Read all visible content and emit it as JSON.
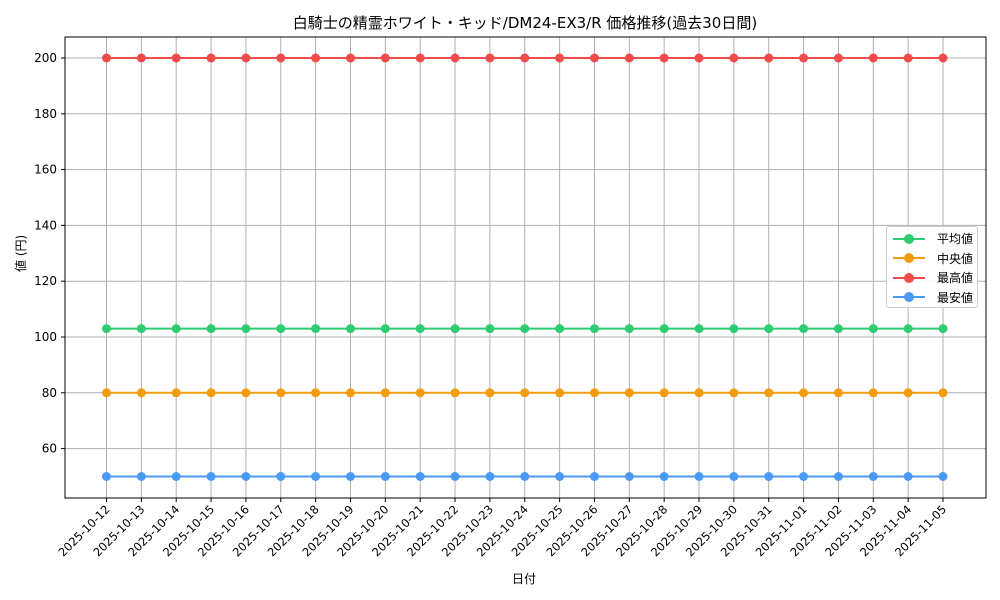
{
  "chart_data": {
    "type": "line",
    "title": "白騎士の精霊ホワイト・キッド/DM24-EX3/R 価格推移(過去30日間)",
    "xlabel": "日付",
    "ylabel": "値 (円)",
    "x": [
      "2025-10-12",
      "2025-10-13",
      "2025-10-14",
      "2025-10-15",
      "2025-10-16",
      "2025-10-17",
      "2025-10-18",
      "2025-10-19",
      "2025-10-20",
      "2025-10-21",
      "2025-10-22",
      "2025-10-23",
      "2025-10-24",
      "2025-10-25",
      "2025-10-26",
      "2025-10-27",
      "2025-10-28",
      "2025-10-29",
      "2025-10-30",
      "2025-10-31",
      "2025-11-01",
      "2025-11-02",
      "2025-11-03",
      "2025-11-04",
      "2025-11-05"
    ],
    "series": [
      {
        "name": "平均値",
        "color": "#2ecc71",
        "values": [
          103,
          103,
          103,
          103,
          103,
          103,
          103,
          103,
          103,
          103,
          103,
          103,
          103,
          103,
          103,
          103,
          103,
          103,
          103,
          103,
          103,
          103,
          103,
          103,
          103
        ]
      },
      {
        "name": "中央値",
        "color": "#f39c12",
        "values": [
          80,
          80,
          80,
          80,
          80,
          80,
          80,
          80,
          80,
          80,
          80,
          80,
          80,
          80,
          80,
          80,
          80,
          80,
          80,
          80,
          80,
          80,
          80,
          80,
          80
        ]
      },
      {
        "name": "最高値",
        "color": "#f04b4b",
        "values": [
          200,
          200,
          200,
          200,
          200,
          200,
          200,
          200,
          200,
          200,
          200,
          200,
          200,
          200,
          200,
          200,
          200,
          200,
          200,
          200,
          200,
          200,
          200,
          200,
          200
        ]
      },
      {
        "name": "最安値",
        "color": "#4a9af5",
        "values": [
          50,
          50,
          50,
          50,
          50,
          50,
          50,
          50,
          50,
          50,
          50,
          50,
          50,
          50,
          50,
          50,
          50,
          50,
          50,
          50,
          50,
          50,
          50,
          50,
          50
        ]
      }
    ],
    "yticks": [
      60,
      80,
      100,
      120,
      140,
      160,
      180,
      200
    ],
    "ylim": [
      42.5,
      207.5
    ],
    "grid": true,
    "legend_position": "center right"
  }
}
